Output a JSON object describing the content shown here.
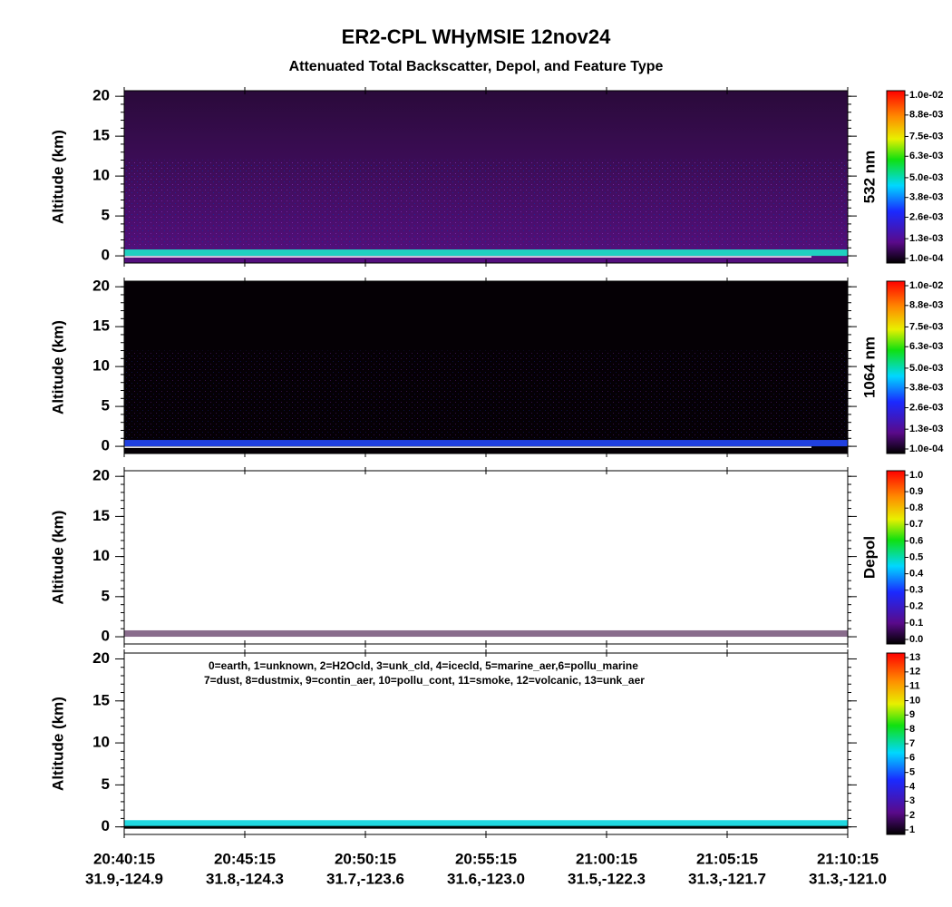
{
  "title": "ER2-CPL WHyMSIE 12nov24",
  "subtitle": "Attenuated Total Backscatter, Depol, and Feature Type",
  "x_ticks": [
    {
      "time": "20:40:15",
      "location": "31.9,-124.9"
    },
    {
      "time": "20:45:15",
      "location": "31.8,-124.3"
    },
    {
      "time": "20:50:15",
      "location": "31.7,-123.6"
    },
    {
      "time": "20:55:15",
      "location": "31.6,-123.0"
    },
    {
      "time": "21:00:15",
      "location": "31.5,-122.3"
    },
    {
      "time": "21:05:15",
      "location": "31.3,-121.7"
    },
    {
      "time": "21:10:15",
      "location": "31.3,-121.0"
    }
  ],
  "chart_data": [
    {
      "type": "heatmap",
      "ylabel": "Altitude (km)",
      "ylim": [
        -0.9,
        20.7
      ],
      "yticks": [
        0,
        5,
        10,
        15,
        20
      ],
      "colorbar": {
        "label": "532 nm",
        "clim": [
          0.0001,
          0.01
        ],
        "ticks": [
          {
            "value": 0.0001,
            "label": "1.0e-04"
          },
          {
            "value": 0.0013,
            "label": "1.3e-03"
          },
          {
            "value": 0.0026,
            "label": "2.6e-03"
          },
          {
            "value": 0.0038,
            "label": "3.8e-03"
          },
          {
            "value": 0.005,
            "label": "5.0e-03"
          },
          {
            "value": 0.0063,
            "label": "6.3e-03"
          },
          {
            "value": 0.0075,
            "label": "7.5e-03"
          },
          {
            "value": 0.0088,
            "label": "8.8e-03"
          },
          {
            "value": 0.01,
            "label": "1.0e-02"
          }
        ]
      }
    },
    {
      "type": "heatmap",
      "ylabel": "Altitude (km)",
      "ylim": [
        -0.9,
        20.7
      ],
      "yticks": [
        0,
        5,
        10,
        15,
        20
      ],
      "colorbar": {
        "label": "1064 nm",
        "clim": [
          0.0001,
          0.01
        ],
        "ticks": [
          {
            "value": 0.0001,
            "label": "1.0e-04"
          },
          {
            "value": 0.0013,
            "label": "1.3e-03"
          },
          {
            "value": 0.0026,
            "label": "2.6e-03"
          },
          {
            "value": 0.0038,
            "label": "3.8e-03"
          },
          {
            "value": 0.005,
            "label": "5.0e-03"
          },
          {
            "value": 0.0063,
            "label": "6.3e-03"
          },
          {
            "value": 0.0075,
            "label": "7.5e-03"
          },
          {
            "value": 0.0088,
            "label": "8.8e-03"
          },
          {
            "value": 0.01,
            "label": "1.0e-02"
          }
        ]
      }
    },
    {
      "type": "heatmap",
      "ylabel": "Altitude (km)",
      "ylim": [
        -0.9,
        20.7
      ],
      "yticks": [
        0,
        5,
        10,
        15,
        20
      ],
      "colorbar": {
        "label": "Depol",
        "clim": [
          0,
          1
        ],
        "ticks": [
          {
            "value": 0,
            "label": "0.0"
          },
          0.1,
          0.2,
          0.3,
          0.4,
          0.5,
          0.6,
          0.7,
          0.8,
          0.9,
          {
            "value": 1,
            "label": "1.0"
          }
        ]
      }
    },
    {
      "type": "heatmap",
      "ylabel": "Altitude (km)",
      "ylim": [
        -0.9,
        20.7
      ],
      "yticks": [
        0,
        5,
        10,
        15,
        20
      ],
      "annotations": [
        "0=earth, 1=unknown, 2=H2Ocld, 3=unk_cld, 4=icecld, 5=marine_aer,6=pollu_marine",
        "7=dust, 8=dustmix, 9=contin_aer, 10=pollu_cont, 11=smoke, 12=volcanic, 13=unk_aer"
      ],
      "colorbar": {
        "clim": [
          1,
          13
        ],
        "ticks": [
          1,
          2,
          3,
          4,
          5,
          6,
          7,
          8,
          9,
          10,
          11,
          12,
          13
        ]
      }
    }
  ]
}
